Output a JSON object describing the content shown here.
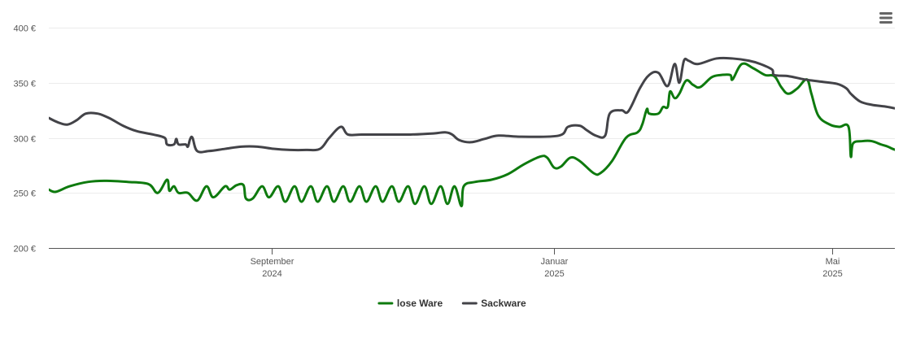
{
  "menu": {
    "icon": "hamburger-menu-icon"
  },
  "chart_data": {
    "type": "line",
    "title": "",
    "xlabel": "",
    "ylabel": "",
    "ylim": [
      200,
      400
    ],
    "yticks": [
      200,
      250,
      300,
      350,
      400
    ],
    "y_tick_labels": [
      "200 €",
      "250 €",
      "300 €",
      "350 €",
      "400 €"
    ],
    "x_ticks": [
      {
        "date": "2024-09-01",
        "label": "September",
        "sublabel": "2024"
      },
      {
        "date": "2025-01-01",
        "label": "Januar",
        "sublabel": "2025"
      },
      {
        "date": "2025-05-01",
        "label": "Mai",
        "sublabel": "2025"
      }
    ],
    "xlim": [
      "2024-05-28",
      "2025-05-28"
    ],
    "grid": "horizontal",
    "legend_position": "bottom-center",
    "series": [
      {
        "name": "lose Ware",
        "color": "#0e7a0e",
        "points": [
          [
            "2024-05-28",
            253
          ],
          [
            "2024-05-31",
            251
          ],
          [
            "2024-06-06",
            256
          ],
          [
            "2024-06-14",
            260
          ],
          [
            "2024-06-22",
            261
          ],
          [
            "2024-07-01",
            260
          ],
          [
            "2024-07-10",
            258
          ],
          [
            "2024-07-14",
            250
          ],
          [
            "2024-07-18",
            262
          ],
          [
            "2024-07-19",
            252
          ],
          [
            "2024-07-21",
            256
          ],
          [
            "2024-07-23",
            250
          ],
          [
            "2024-07-27",
            250
          ],
          [
            "2024-07-31",
            243
          ],
          [
            "2024-08-04",
            256
          ],
          [
            "2024-08-07",
            246
          ],
          [
            "2024-08-12",
            256
          ],
          [
            "2024-08-14",
            253
          ],
          [
            "2024-08-17",
            257
          ],
          [
            "2024-08-20",
            257
          ],
          [
            "2024-08-21",
            245
          ],
          [
            "2024-08-24",
            245
          ],
          [
            "2024-08-28",
            256
          ],
          [
            "2024-08-31",
            246
          ],
          [
            "2024-09-04",
            256
          ],
          [
            "2024-09-07",
            242
          ],
          [
            "2024-09-11",
            256
          ],
          [
            "2024-09-14",
            242
          ],
          [
            "2024-09-18",
            256
          ],
          [
            "2024-09-21",
            242
          ],
          [
            "2024-09-25",
            256
          ],
          [
            "2024-09-28",
            242
          ],
          [
            "2024-10-02",
            256
          ],
          [
            "2024-10-05",
            242
          ],
          [
            "2024-10-09",
            256
          ],
          [
            "2024-10-12",
            242
          ],
          [
            "2024-10-16",
            256
          ],
          [
            "2024-10-19",
            242
          ],
          [
            "2024-10-23",
            256
          ],
          [
            "2024-10-26",
            242
          ],
          [
            "2024-10-30",
            256
          ],
          [
            "2024-11-02",
            240
          ],
          [
            "2024-11-06",
            256
          ],
          [
            "2024-11-09",
            240
          ],
          [
            "2024-11-13",
            256
          ],
          [
            "2024-11-16",
            240
          ],
          [
            "2024-11-19",
            256
          ],
          [
            "2024-11-22",
            238
          ],
          [
            "2024-11-23",
            256
          ],
          [
            "2024-11-28",
            260
          ],
          [
            "2024-12-05",
            262
          ],
          [
            "2024-12-12",
            267
          ],
          [
            "2024-12-19",
            276
          ],
          [
            "2024-12-26",
            283
          ],
          [
            "2024-12-29",
            282
          ],
          [
            "2025-01-01",
            273
          ],
          [
            "2025-01-04",
            274
          ],
          [
            "2025-01-08",
            282
          ],
          [
            "2025-01-12",
            279
          ],
          [
            "2025-01-18",
            268
          ],
          [
            "2025-01-21",
            268
          ],
          [
            "2025-01-26",
            279
          ],
          [
            "2025-02-01",
            300
          ],
          [
            "2025-02-06",
            305
          ],
          [
            "2025-02-08",
            312
          ],
          [
            "2025-02-10",
            326
          ],
          [
            "2025-02-11",
            322
          ],
          [
            "2025-02-15",
            322
          ],
          [
            "2025-02-17",
            328
          ],
          [
            "2025-02-19",
            328
          ],
          [
            "2025-02-20",
            342
          ],
          [
            "2025-02-22",
            336
          ],
          [
            "2025-02-24",
            340
          ],
          [
            "2025-02-27",
            352
          ],
          [
            "2025-03-02",
            348
          ],
          [
            "2025-03-05",
            346
          ],
          [
            "2025-03-10",
            355
          ],
          [
            "2025-03-14",
            357
          ],
          [
            "2025-03-18",
            357
          ],
          [
            "2025-03-19",
            353
          ],
          [
            "2025-03-23",
            367
          ],
          [
            "2025-03-28",
            363
          ],
          [
            "2025-04-02",
            357
          ],
          [
            "2025-04-06",
            356
          ],
          [
            "2025-04-09",
            346
          ],
          [
            "2025-04-12",
            340
          ],
          [
            "2025-04-16",
            345
          ],
          [
            "2025-04-20",
            353
          ],
          [
            "2025-04-22",
            340
          ],
          [
            "2025-04-25",
            320
          ],
          [
            "2025-04-30",
            312
          ],
          [
            "2025-05-04",
            310
          ],
          [
            "2025-05-08",
            310
          ],
          [
            "2025-05-09",
            283
          ],
          [
            "2025-05-10",
            295
          ],
          [
            "2025-05-14",
            297
          ],
          [
            "2025-05-18",
            297
          ],
          [
            "2025-05-22",
            294
          ],
          [
            "2025-05-25",
            292
          ],
          [
            "2025-05-27",
            290
          ],
          [
            "2025-05-31",
            287
          ],
          [
            "2025-06-04",
            284
          ],
          [
            "2025-06-06",
            283
          ],
          [
            "2025-06-07",
            279
          ]
        ]
      },
      {
        "name": "Sackware",
        "color": "#434348",
        "points": [
          [
            "2024-05-28",
            318
          ],
          [
            "2024-06-01",
            314
          ],
          [
            "2024-06-05",
            312
          ],
          [
            "2024-06-09",
            316
          ],
          [
            "2024-06-13",
            322
          ],
          [
            "2024-06-18",
            322
          ],
          [
            "2024-06-23",
            318
          ],
          [
            "2024-06-29",
            311
          ],
          [
            "2024-07-05",
            306
          ],
          [
            "2024-07-12",
            303
          ],
          [
            "2024-07-17",
            300
          ],
          [
            "2024-07-18",
            294
          ],
          [
            "2024-07-21",
            294
          ],
          [
            "2024-07-22",
            299
          ],
          [
            "2024-07-23",
            294
          ],
          [
            "2024-07-26",
            294
          ],
          [
            "2024-07-27",
            292
          ],
          [
            "2024-07-28",
            299
          ],
          [
            "2024-07-29",
            300
          ],
          [
            "2024-07-31",
            288
          ],
          [
            "2024-08-05",
            288
          ],
          [
            "2024-08-12",
            290
          ],
          [
            "2024-08-19",
            292
          ],
          [
            "2024-08-26",
            292
          ],
          [
            "2024-09-02",
            290
          ],
          [
            "2024-09-09",
            289
          ],
          [
            "2024-09-16",
            289
          ],
          [
            "2024-09-22",
            290
          ],
          [
            "2024-09-26",
            300
          ],
          [
            "2024-10-01",
            310
          ],
          [
            "2024-10-04",
            303
          ],
          [
            "2024-10-10",
            303
          ],
          [
            "2024-10-20",
            303
          ],
          [
            "2024-10-31",
            303
          ],
          [
            "2024-11-10",
            304
          ],
          [
            "2024-11-15",
            305
          ],
          [
            "2024-11-18",
            303
          ],
          [
            "2024-11-21",
            298
          ],
          [
            "2024-11-26",
            296
          ],
          [
            "2024-12-02",
            299
          ],
          [
            "2024-12-08",
            302
          ],
          [
            "2024-12-18",
            301
          ],
          [
            "2025-01-03",
            302
          ],
          [
            "2025-01-07",
            310
          ],
          [
            "2025-01-12",
            311
          ],
          [
            "2025-01-15",
            307
          ],
          [
            "2025-01-19",
            302
          ],
          [
            "2025-01-23",
            302
          ],
          [
            "2025-01-25",
            322
          ],
          [
            "2025-01-30",
            325
          ],
          [
            "2025-02-02",
            324
          ],
          [
            "2025-02-07",
            345
          ],
          [
            "2025-02-11",
            357
          ],
          [
            "2025-02-15",
            359
          ],
          [
            "2025-02-19",
            347
          ],
          [
            "2025-02-22",
            367
          ],
          [
            "2025-02-24",
            350
          ],
          [
            "2025-02-26",
            370
          ],
          [
            "2025-02-28",
            370
          ],
          [
            "2025-03-04",
            367
          ],
          [
            "2025-03-12",
            372
          ],
          [
            "2025-03-19",
            372
          ],
          [
            "2025-03-26",
            370
          ],
          [
            "2025-03-31",
            367
          ],
          [
            "2025-04-05",
            362
          ],
          [
            "2025-04-06",
            357
          ],
          [
            "2025-04-12",
            356
          ],
          [
            "2025-04-19",
            353
          ],
          [
            "2025-04-26",
            351
          ],
          [
            "2025-05-03",
            349
          ],
          [
            "2025-05-07",
            345
          ],
          [
            "2025-05-09",
            340
          ],
          [
            "2025-05-13",
            333
          ],
          [
            "2025-05-18",
            330
          ],
          [
            "2025-05-25",
            328
          ],
          [
            "2025-06-01",
            325
          ],
          [
            "2025-06-07",
            323
          ],
          [
            "2025-06-10",
            322
          ],
          [
            "2025-06-13",
            321
          ],
          [
            "2025-06-14",
            318
          ]
        ]
      }
    ]
  }
}
